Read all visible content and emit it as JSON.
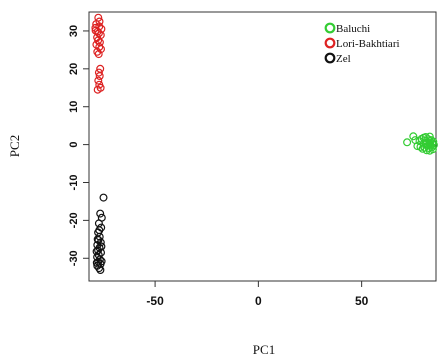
{
  "chart_data": {
    "type": "scatter",
    "title": "",
    "xlabel": "PC1",
    "ylabel": "PC2",
    "xlim": [
      -82,
      86
    ],
    "ylim": [
      -36,
      35
    ],
    "x_ticks": [
      -50,
      0,
      50
    ],
    "y_ticks": [
      -30,
      -20,
      -10,
      0,
      10,
      20,
      30
    ],
    "grid": false,
    "legend_position": "top-right",
    "series": [
      {
        "name": "Baluchi",
        "color": "#33cc33",
        "points": [
          [
            72,
            0.6
          ],
          [
            75,
            2.2
          ],
          [
            76,
            1.2
          ],
          [
            77,
            -0.4
          ],
          [
            78,
            0.9
          ],
          [
            79,
            1.5
          ],
          [
            79.5,
            -1.1
          ],
          [
            80,
            0.2
          ],
          [
            80.5,
            -0.8
          ],
          [
            81,
            1.1
          ],
          [
            81.2,
            0.1
          ],
          [
            81.5,
            -1.5
          ],
          [
            81.8,
            0.6
          ],
          [
            82,
            -0.3
          ],
          [
            82.2,
            1.4
          ],
          [
            82.5,
            -0.9
          ],
          [
            82.8,
            0.4
          ],
          [
            83,
            -1.6
          ],
          [
            83.2,
            0.9
          ],
          [
            83.5,
            -0.2
          ],
          [
            83.7,
            1.2
          ],
          [
            84,
            -0.7
          ],
          [
            84.2,
            0.3
          ],
          [
            84.5,
            -1.2
          ],
          [
            84.7,
            0.8
          ],
          [
            85,
            -0.1
          ],
          [
            80,
            1.8
          ],
          [
            78.5,
            -0.6
          ],
          [
            81,
            2.0
          ],
          [
            83,
            2.1
          ]
        ]
      },
      {
        "name": "Lori-Bakhtiari",
        "color": "#dd2222",
        "points": [
          [
            -77.5,
            33.5
          ],
          [
            -78.5,
            31.8
          ],
          [
            -77,
            31.2
          ],
          [
            -76,
            30.5
          ],
          [
            -78.8,
            30.1
          ],
          [
            -77.2,
            29.4
          ],
          [
            -76.3,
            28.9
          ],
          [
            -78.1,
            28.3
          ],
          [
            -77.6,
            27.5
          ],
          [
            -76.7,
            27.0
          ],
          [
            -78.4,
            26.4
          ],
          [
            -77,
            25.8
          ],
          [
            -76.2,
            25.2
          ],
          [
            -78.0,
            24.5
          ],
          [
            -77.3,
            23.9
          ],
          [
            -76.6,
            20.0
          ],
          [
            -77.2,
            19.0
          ],
          [
            -76.8,
            18.1
          ],
          [
            -77.5,
            16.9
          ],
          [
            -77.0,
            15.8
          ],
          [
            -76.4,
            15.0
          ],
          [
            -77.8,
            14.5
          ],
          [
            -78.9,
            30.8
          ],
          [
            -76.9,
            32.5
          ],
          [
            -77.9,
            29.8
          ]
        ]
      },
      {
        "name": "Zel",
        "color": "#111111",
        "points": [
          [
            -75.0,
            -14.0
          ],
          [
            -76.6,
            -18.2
          ],
          [
            -75.8,
            -19.3
          ],
          [
            -77.2,
            -20.8
          ],
          [
            -76.1,
            -21.9
          ],
          [
            -77.6,
            -23.2
          ],
          [
            -76.8,
            -24.3
          ],
          [
            -77.4,
            -25.2
          ],
          [
            -76.3,
            -25.8
          ],
          [
            -78.0,
            -26.5
          ],
          [
            -76.9,
            -27.2
          ],
          [
            -77.6,
            -27.9
          ],
          [
            -76.2,
            -28.5
          ],
          [
            -77.3,
            -29.1
          ],
          [
            -78.1,
            -29.7
          ],
          [
            -76.7,
            -30.3
          ],
          [
            -77.5,
            -30.9
          ],
          [
            -76.4,
            -31.5
          ],
          [
            -78.0,
            -32.0
          ],
          [
            -77.1,
            -32.6
          ],
          [
            -76.5,
            -33.1
          ],
          [
            -77.8,
            -25.0
          ],
          [
            -76.0,
            -26.9
          ],
          [
            -78.3,
            -28.2
          ],
          [
            -75.9,
            -30.8
          ],
          [
            -77.0,
            -22.6
          ],
          [
            -78.2,
            -31.2
          ]
        ]
      }
    ]
  }
}
